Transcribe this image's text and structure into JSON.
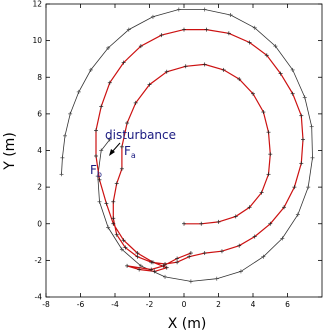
{
  "chart_data": {
    "type": "scatter",
    "title": "",
    "xlabel": "X (m)",
    "ylabel": "Y (m)",
    "xlim": [
      -8,
      8
    ],
    "ylim": [
      -4,
      12
    ],
    "xticks": [
      -8,
      -6,
      -4,
      -2,
      0,
      2,
      4,
      6
    ],
    "yticks": [
      -4,
      -2,
      0,
      2,
      4,
      6,
      8,
      10,
      12
    ],
    "grid": false,
    "legend": "none",
    "series": [
      {
        "color": "#555555",
        "marker": "plus",
        "points": [
          [
            -7.1,
            2.7
          ],
          [
            -7.05,
            3.6
          ],
          [
            -6.9,
            4.8
          ],
          [
            -6.6,
            6.0
          ],
          [
            -6.1,
            7.2
          ],
          [
            -5.4,
            8.4
          ],
          [
            -4.4,
            9.6
          ],
          [
            -3.2,
            10.6
          ],
          [
            -1.8,
            11.3
          ],
          [
            -0.3,
            11.7
          ],
          [
            1.2,
            11.7
          ],
          [
            2.7,
            11.4
          ],
          [
            4.1,
            10.7
          ],
          [
            5.3,
            9.7
          ],
          [
            6.3,
            8.4
          ],
          [
            7.0,
            6.9
          ],
          [
            7.4,
            5.3
          ],
          [
            7.45,
            3.6
          ],
          [
            7.2,
            2.0
          ],
          [
            6.6,
            0.5
          ],
          [
            5.7,
            -0.8
          ],
          [
            4.6,
            -1.8
          ],
          [
            3.3,
            -2.6
          ],
          [
            1.9,
            -3.0
          ],
          [
            0.4,
            -3.15
          ],
          [
            -1.1,
            -2.9
          ],
          [
            -2.5,
            -2.3
          ],
          [
            -3.6,
            -1.4
          ],
          [
            -4.4,
            -0.2
          ],
          [
            -4.9,
            1.2
          ],
          [
            -5.0,
            2.6
          ],
          [
            -4.8,
            4.0
          ],
          [
            -4.3,
            4.6
          ]
        ]
      },
      {
        "color": "#cc1111",
        "marker": "plus",
        "points": [
          [
            0.0,
            0.0
          ],
          [
            1.0,
            0.0
          ],
          [
            2.0,
            0.1
          ],
          [
            3.0,
            0.4
          ],
          [
            3.8,
            0.9
          ],
          [
            4.5,
            1.7
          ],
          [
            4.9,
            2.7
          ],
          [
            5.0,
            3.8
          ],
          [
            4.9,
            5.0
          ],
          [
            4.6,
            6.1
          ],
          [
            4.0,
            7.1
          ],
          [
            3.2,
            7.9
          ],
          [
            2.3,
            8.4
          ],
          [
            1.2,
            8.7
          ],
          [
            0.1,
            8.6
          ],
          [
            -1.0,
            8.3
          ],
          [
            -2.0,
            7.6
          ],
          [
            -2.8,
            6.6
          ],
          [
            -3.3,
            5.5
          ],
          [
            -3.6,
            4.2
          ],
          [
            -3.6,
            3.0
          ],
          [
            -3.9,
            2.2
          ],
          [
            -4.1,
            1.2
          ],
          [
            -4.1,
            0.3
          ],
          [
            -3.9,
            -0.6
          ],
          [
            -3.4,
            -1.3
          ],
          [
            -2.7,
            -1.8
          ],
          [
            -1.9,
            -2.1
          ],
          [
            -1.1,
            -2.2
          ],
          [
            -0.4,
            -2.1
          ],
          [
            0.3,
            -1.8
          ],
          [
            1.2,
            -1.6
          ],
          [
            2.2,
            -1.5
          ],
          [
            3.2,
            -1.2
          ],
          [
            4.1,
            -0.7
          ],
          [
            5.0,
            0.0
          ],
          [
            5.8,
            0.9
          ],
          [
            6.4,
            2.0
          ],
          [
            6.8,
            3.3
          ],
          [
            6.9,
            4.6
          ],
          [
            6.8,
            5.9
          ],
          [
            6.3,
            7.1
          ],
          [
            5.6,
            8.2
          ],
          [
            4.8,
            9.2
          ],
          [
            3.8,
            9.9
          ],
          [
            2.6,
            10.4
          ],
          [
            1.3,
            10.6
          ],
          [
            0.0,
            10.6
          ],
          [
            -1.3,
            10.3
          ],
          [
            -2.5,
            9.7
          ],
          [
            -3.5,
            8.8
          ],
          [
            -4.3,
            7.7
          ],
          [
            -4.8,
            6.4
          ],
          [
            -5.1,
            5.1
          ],
          [
            -5.1,
            3.7
          ],
          [
            -4.9,
            2.4
          ],
          [
            -4.5,
            1.1
          ],
          [
            -4.1,
            0.0
          ],
          [
            -3.5,
            -0.9
          ],
          [
            -2.7,
            -1.6
          ],
          [
            -1.8,
            -2.1
          ],
          [
            -1.0,
            -2.4
          ],
          [
            -1.7,
            -2.6
          ],
          [
            -2.6,
            -2.5
          ],
          [
            -3.3,
            -2.3
          ],
          [
            -1.9,
            -2.5
          ],
          [
            -1.2,
            -2.3
          ],
          [
            -0.4,
            -1.9
          ],
          [
            0.4,
            -1.6
          ]
        ]
      }
    ],
    "annotations": [
      {
        "text": "disturbance"
      },
      {
        "text": "F",
        "sub": "a"
      },
      {
        "text": "F",
        "sub": "b"
      }
    ]
  }
}
